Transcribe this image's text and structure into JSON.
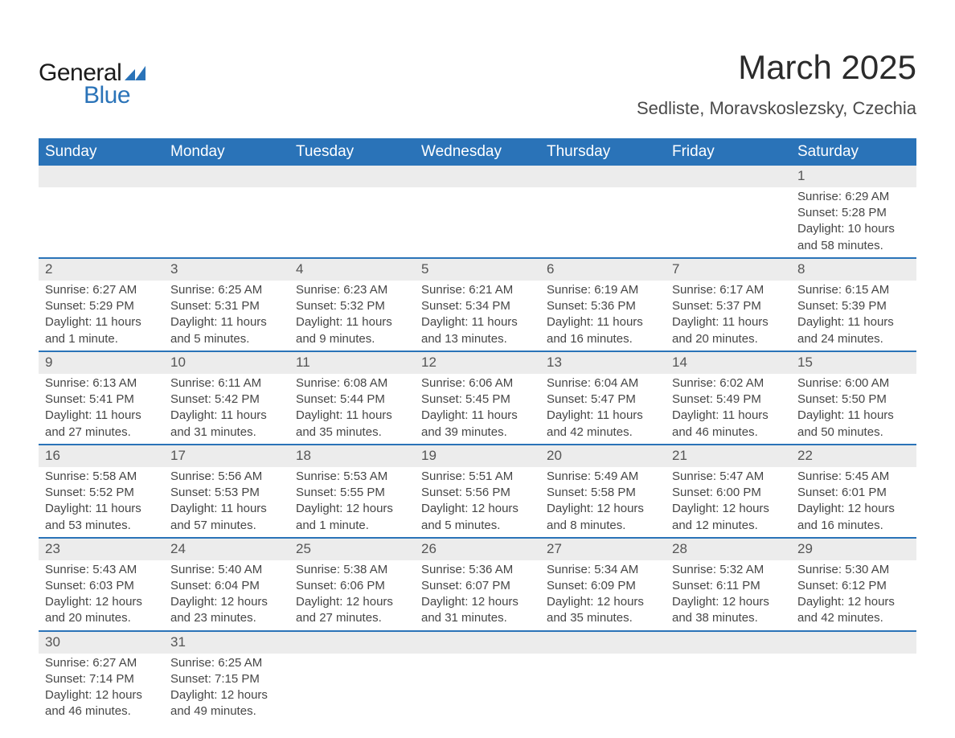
{
  "logo": {
    "text_general": "General",
    "text_blue": "Blue",
    "shape_color": "#2a73b8"
  },
  "header": {
    "title": "March 2025",
    "location": "Sedliste, Moravskoslezsky, Czechia"
  },
  "colors": {
    "header_bg": "#2a73b8",
    "header_text": "#ffffff",
    "daynum_bg": "#ececec",
    "row_divider": "#2a73b8",
    "text": "#464646"
  },
  "weekdays": [
    "Sunday",
    "Monday",
    "Tuesday",
    "Wednesday",
    "Thursday",
    "Friday",
    "Saturday"
  ],
  "weeks": [
    {
      "nums": [
        "",
        "",
        "",
        "",
        "",
        "",
        "1"
      ],
      "details": [
        "",
        "",
        "",
        "",
        "",
        "",
        "Sunrise: 6:29 AM\nSunset: 5:28 PM\nDaylight: 10 hours and 58 minutes."
      ]
    },
    {
      "nums": [
        "2",
        "3",
        "4",
        "5",
        "6",
        "7",
        "8"
      ],
      "details": [
        "Sunrise: 6:27 AM\nSunset: 5:29 PM\nDaylight: 11 hours and 1 minute.",
        "Sunrise: 6:25 AM\nSunset: 5:31 PM\nDaylight: 11 hours and 5 minutes.",
        "Sunrise: 6:23 AM\nSunset: 5:32 PM\nDaylight: 11 hours and 9 minutes.",
        "Sunrise: 6:21 AM\nSunset: 5:34 PM\nDaylight: 11 hours and 13 minutes.",
        "Sunrise: 6:19 AM\nSunset: 5:36 PM\nDaylight: 11 hours and 16 minutes.",
        "Sunrise: 6:17 AM\nSunset: 5:37 PM\nDaylight: 11 hours and 20 minutes.",
        "Sunrise: 6:15 AM\nSunset: 5:39 PM\nDaylight: 11 hours and 24 minutes."
      ]
    },
    {
      "nums": [
        "9",
        "10",
        "11",
        "12",
        "13",
        "14",
        "15"
      ],
      "details": [
        "Sunrise: 6:13 AM\nSunset: 5:41 PM\nDaylight: 11 hours and 27 minutes.",
        "Sunrise: 6:11 AM\nSunset: 5:42 PM\nDaylight: 11 hours and 31 minutes.",
        "Sunrise: 6:08 AM\nSunset: 5:44 PM\nDaylight: 11 hours and 35 minutes.",
        "Sunrise: 6:06 AM\nSunset: 5:45 PM\nDaylight: 11 hours and 39 minutes.",
        "Sunrise: 6:04 AM\nSunset: 5:47 PM\nDaylight: 11 hours and 42 minutes.",
        "Sunrise: 6:02 AM\nSunset: 5:49 PM\nDaylight: 11 hours and 46 minutes.",
        "Sunrise: 6:00 AM\nSunset: 5:50 PM\nDaylight: 11 hours and 50 minutes."
      ]
    },
    {
      "nums": [
        "16",
        "17",
        "18",
        "19",
        "20",
        "21",
        "22"
      ],
      "details": [
        "Sunrise: 5:58 AM\nSunset: 5:52 PM\nDaylight: 11 hours and 53 minutes.",
        "Sunrise: 5:56 AM\nSunset: 5:53 PM\nDaylight: 11 hours and 57 minutes.",
        "Sunrise: 5:53 AM\nSunset: 5:55 PM\nDaylight: 12 hours and 1 minute.",
        "Sunrise: 5:51 AM\nSunset: 5:56 PM\nDaylight: 12 hours and 5 minutes.",
        "Sunrise: 5:49 AM\nSunset: 5:58 PM\nDaylight: 12 hours and 8 minutes.",
        "Sunrise: 5:47 AM\nSunset: 6:00 PM\nDaylight: 12 hours and 12 minutes.",
        "Sunrise: 5:45 AM\nSunset: 6:01 PM\nDaylight: 12 hours and 16 minutes."
      ]
    },
    {
      "nums": [
        "23",
        "24",
        "25",
        "26",
        "27",
        "28",
        "29"
      ],
      "details": [
        "Sunrise: 5:43 AM\nSunset: 6:03 PM\nDaylight: 12 hours and 20 minutes.",
        "Sunrise: 5:40 AM\nSunset: 6:04 PM\nDaylight: 12 hours and 23 minutes.",
        "Sunrise: 5:38 AM\nSunset: 6:06 PM\nDaylight: 12 hours and 27 minutes.",
        "Sunrise: 5:36 AM\nSunset: 6:07 PM\nDaylight: 12 hours and 31 minutes.",
        "Sunrise: 5:34 AM\nSunset: 6:09 PM\nDaylight: 12 hours and 35 minutes.",
        "Sunrise: 5:32 AM\nSunset: 6:11 PM\nDaylight: 12 hours and 38 minutes.",
        "Sunrise: 5:30 AM\nSunset: 6:12 PM\nDaylight: 12 hours and 42 minutes."
      ]
    },
    {
      "nums": [
        "30",
        "31",
        "",
        "",
        "",
        "",
        ""
      ],
      "details": [
        "Sunrise: 6:27 AM\nSunset: 7:14 PM\nDaylight: 12 hours and 46 minutes.",
        "Sunrise: 6:25 AM\nSunset: 7:15 PM\nDaylight: 12 hours and 49 minutes.",
        "",
        "",
        "",
        "",
        ""
      ]
    }
  ]
}
